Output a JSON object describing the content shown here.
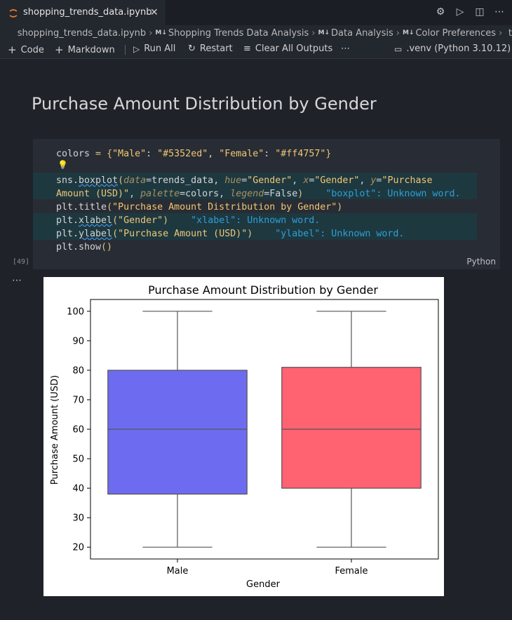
{
  "tab": {
    "filename": "shopping_trends_data.ipynb",
    "close_glyph": "✕",
    "icon": "jupyter-icon"
  },
  "tab_actions": [
    {
      "name": "settings-icon",
      "glyph": "⚙"
    },
    {
      "name": "run-icon",
      "glyph": "▷"
    },
    {
      "name": "split-editor-icon",
      "glyph": "◫"
    },
    {
      "name": "more-icon",
      "glyph": "⋯"
    }
  ],
  "breadcrumb": {
    "file": "shopping_trends_data.ipynb",
    "items": [
      "Shopping Trends Data Analysis",
      "Data Analysis",
      "Color Preferences"
    ],
    "md_badge": "M↓",
    "trailing": "t"
  },
  "toolbar": {
    "code": "Code",
    "markdown": "Markdown",
    "run_all": "Run All",
    "restart": "Restart",
    "clear_all": "Clear All Outputs",
    "more": "⋯",
    "kernel": ".venv (Python 3.10.12)"
  },
  "markdown_heading": "Purchase Amount Distribution by Gender",
  "cell": {
    "exec_count": "[49]",
    "language": "Python",
    "lines": {
      "l1_a": "colors",
      "l1_b": " = ",
      "l1_c": "{",
      "l1_d": "\"Male\"",
      "l1_e": ": ",
      "l1_f": "\"#5352ed\"",
      "l1_g": ", ",
      "l1_h": "\"Female\"",
      "l1_i": ": ",
      "l1_j": "\"#ff4757\"",
      "l1_k": "}",
      "l2_a": "sns.",
      "l2_b": "boxplot",
      "l2_c": "(",
      "l2_d": "data",
      "l2_e": "=trends_data, ",
      "l2_f": "hue",
      "l2_g": "=",
      "l2_h": "\"Gender\"",
      "l2_i": ", ",
      "l2_j": "x",
      "l2_k": "=",
      "l2_l": "\"Gender\"",
      "l2_m": ", ",
      "l2_n": "y",
      "l2_o": "=",
      "l2_p": "\"Purchase",
      "l3_a": "Amount (USD)\"",
      "l3_b": ", ",
      "l3_c": "palette",
      "l3_d": "=colors, ",
      "l3_e": "legend",
      "l3_f": "=False",
      "l3_g": ")",
      "l3_hint": "    \"boxplot\": Unknown word.",
      "l4_a": "plt.title",
      "l4_b": "(",
      "l4_c": "\"Purchase Amount Distribution by Gender\"",
      "l4_d": ")",
      "l5_a": "plt.",
      "l5_b": "xlabel",
      "l5_c": "(",
      "l5_d": "\"Gender\"",
      "l5_e": ")",
      "l5_hint": "    \"xlabel\": Unknown word.",
      "l6_a": "plt.",
      "l6_b": "ylabel",
      "l6_c": "(",
      "l6_d": "\"Purchase Amount (USD)\"",
      "l6_e": ")",
      "l6_hint": "    \"ylabel\": Unknown word.",
      "l7_a": "plt.show",
      "l7_b": "()"
    }
  },
  "output_dots": "⋯",
  "chart_data": {
    "type": "boxplot",
    "title": "Purchase Amount Distribution by Gender",
    "xlabel": "Gender",
    "ylabel": "Purchase Amount (USD)",
    "ylim": [
      16,
      104
    ],
    "yticks": [
      20,
      30,
      40,
      50,
      60,
      70,
      80,
      90,
      100
    ],
    "categories": [
      "Male",
      "Female"
    ],
    "boxes": [
      {
        "category": "Male",
        "min": 20,
        "q1": 38,
        "median": 60,
        "q3": 80,
        "max": 100,
        "color": "#5352ed"
      },
      {
        "category": "Female",
        "min": 20,
        "q1": 40,
        "median": 60,
        "q3": 81,
        "max": 100,
        "color": "#ff4757"
      }
    ],
    "grid": false,
    "legend": "none"
  },
  "colors": {
    "male": "#5352ed",
    "female": "#ff4757",
    "hint": "#2d9fd6"
  }
}
